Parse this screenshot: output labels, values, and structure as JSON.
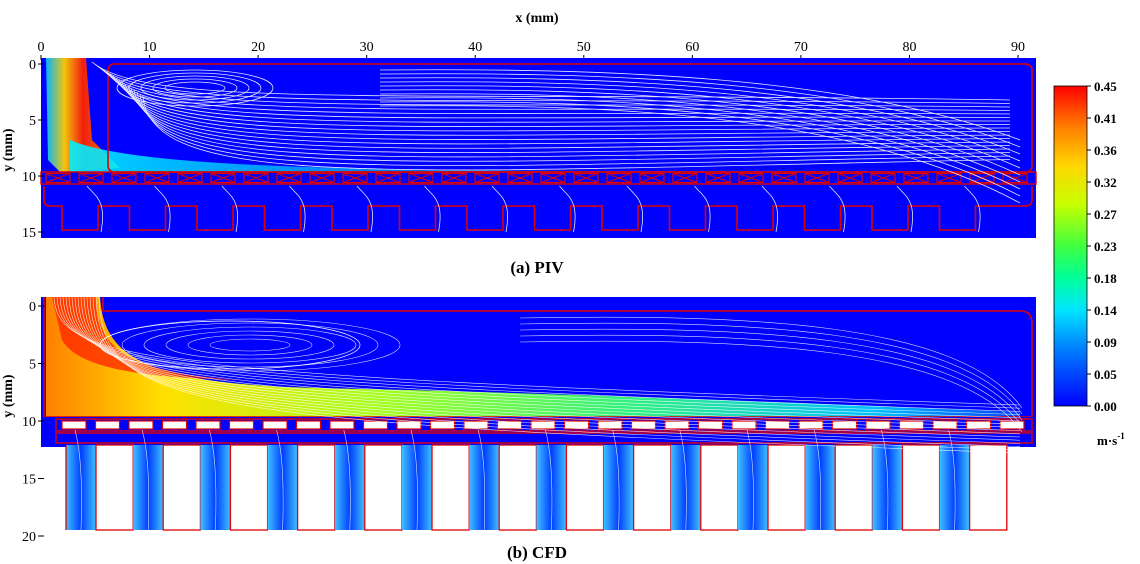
{
  "x_axis": {
    "label": "x (mm)",
    "ticks": [
      "0",
      "10",
      "20",
      "30",
      "40",
      "50",
      "60",
      "70",
      "80",
      "90"
    ]
  },
  "panels": [
    {
      "caption": "(a) PIV",
      "y_axis_label": "y (mm)",
      "y_ticks": [
        "0",
        "5",
        "10",
        "15"
      ]
    },
    {
      "caption": "(b) CFD",
      "y_axis_label": "y (mm)",
      "y_ticks": [
        "0",
        "5",
        "10",
        "15",
        "20"
      ]
    }
  ],
  "colorbar": {
    "ticks": [
      "0.45",
      "0.41",
      "0.36",
      "0.32",
      "0.27",
      "0.23",
      "0.18",
      "0.14",
      "0.09",
      "0.05",
      "0.00"
    ],
    "unit_main": "m·s",
    "unit_exp": "-1",
    "colors": [
      "#ff0000",
      "#ff8000",
      "#ffd700",
      "#c8ff00",
      "#40ff40",
      "#00ff9a",
      "#00e5ff",
      "#0080ff",
      "#0000ff"
    ]
  },
  "colors": {
    "background_flow": "#0000ff",
    "outline": "#e00000",
    "streamline": "#ffffff"
  }
}
